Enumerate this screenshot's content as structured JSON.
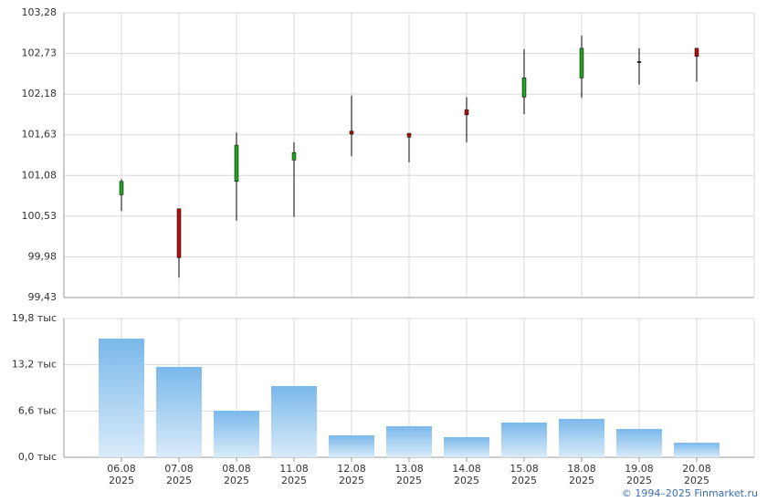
{
  "chart_data": [
    {
      "type": "candlestick",
      "categories": [
        "06.08",
        "07.08",
        "08.08",
        "11.08",
        "12.08",
        "13.08",
        "14.08",
        "15.08",
        "18.08",
        "19.08",
        "20.08"
      ],
      "open": [
        100.82,
        100.63,
        101.0,
        101.29,
        101.68,
        101.65,
        101.97,
        102.14,
        102.4,
        102.62,
        102.8
      ],
      "high": [
        101.03,
        100.63,
        101.66,
        101.53,
        102.16,
        101.65,
        102.14,
        102.79,
        102.97,
        102.8,
        102.8
      ],
      "low": [
        100.6,
        99.7,
        100.47,
        100.52,
        101.34,
        101.26,
        101.53,
        101.91,
        102.13,
        102.31,
        102.35
      ],
      "close": [
        101.0,
        99.97,
        101.49,
        101.39,
        101.64,
        101.6,
        101.9,
        102.4,
        102.8,
        102.62,
        102.69
      ],
      "up_color": "#22a022",
      "down_color": "#b01010",
      "doji_color": "#000000",
      "ylim": [
        99.43,
        103.28
      ],
      "yticks": [
        {
          "value": 99.43,
          "label": "99,43"
        },
        {
          "value": 99.98,
          "label": "99,98"
        },
        {
          "value": 100.53,
          "label": "100,53"
        },
        {
          "value": 101.08,
          "label": "101,08"
        },
        {
          "value": 101.63,
          "label": "101,63"
        },
        {
          "value": 102.18,
          "label": "102,18"
        },
        {
          "value": 102.73,
          "label": "102,73"
        },
        {
          "value": 103.28,
          "label": "103,28"
        }
      ],
      "grid": true
    },
    {
      "type": "bar",
      "categories": [
        "06.08",
        "07.08",
        "08.08",
        "11.08",
        "12.08",
        "13.08",
        "14.08",
        "15.08",
        "18.08",
        "19.08",
        "20.08"
      ],
      "category_years": [
        "2025",
        "2025",
        "2025",
        "2025",
        "2025",
        "2025",
        "2025",
        "2025",
        "2025",
        "2025",
        "2025"
      ],
      "values": [
        16.93,
        12.9,
        6.64,
        10.16,
        3.13,
        4.43,
        2.87,
        4.95,
        5.47,
        4.04,
        2.08
      ],
      "color": "#7ab8ea",
      "ylim": [
        0,
        19.8
      ],
      "yticks": [
        {
          "value": 0,
          "label": "0,0 тыс"
        },
        {
          "value": 6.6,
          "label": "6,6 тыс"
        },
        {
          "value": 13.2,
          "label": "13,2 тыс"
        },
        {
          "value": 19.8,
          "label": "19,8 тыс"
        }
      ],
      "grid": true
    }
  ],
  "footer": "© 1994–2025 Finmarket.ru"
}
